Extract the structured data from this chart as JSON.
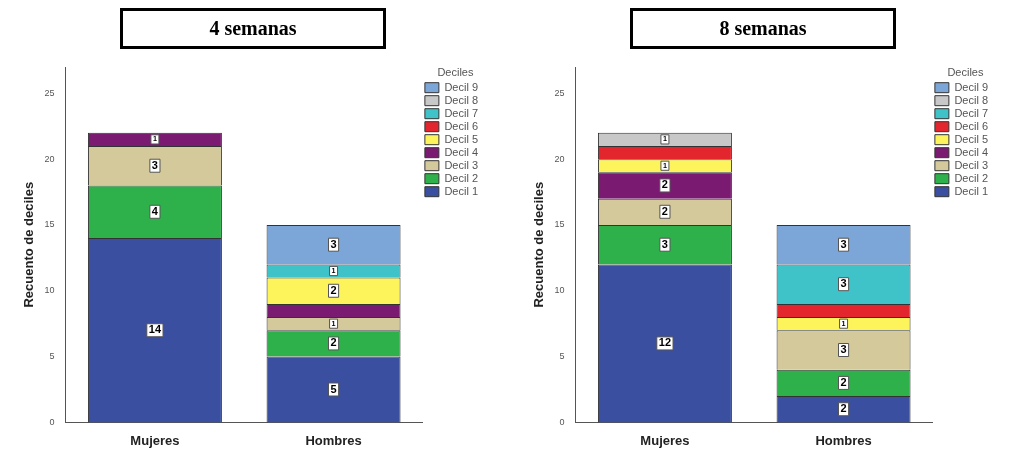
{
  "chart_data": [
    {
      "type": "bar",
      "title": "4 semanas",
      "ylabel": "Recuento de deciles",
      "legend_title": "Deciles",
      "legend": "right",
      "stacked": true,
      "grid": false,
      "categories": [
        "Mujeres",
        "Hombres"
      ],
      "ylim": [
        0,
        27
      ],
      "yticks": [
        0,
        5,
        10,
        15,
        20,
        25
      ],
      "series": [
        {
          "name": "Decil 1",
          "color": "#3a4fa0",
          "values": [
            14,
            5
          ],
          "value_labels": [
            "14",
            "5"
          ]
        },
        {
          "name": "Decil 2",
          "color": "#2eb14a",
          "values": [
            4,
            2
          ],
          "value_labels": [
            "4",
            "2"
          ]
        },
        {
          "name": "Decil 3",
          "color": "#d4c99a",
          "values": [
            3,
            1
          ],
          "value_labels": [
            "3",
            "1"
          ]
        },
        {
          "name": "Decil 4",
          "color": "#7a1a70",
          "values": [
            1,
            1
          ],
          "value_labels": [
            "1",
            null
          ]
        },
        {
          "name": "Decil 5",
          "color": "#fcf45a",
          "values": [
            0,
            2
          ],
          "value_labels": [
            null,
            "2"
          ]
        },
        {
          "name": "Decil 6",
          "color": "#e3262e",
          "values": [
            0,
            0
          ],
          "value_labels": [
            null,
            null
          ]
        },
        {
          "name": "Decil 7",
          "color": "#40c3c8",
          "values": [
            0,
            1
          ],
          "value_labels": [
            null,
            "1"
          ]
        },
        {
          "name": "Decil 8",
          "color": "#c8c8c8",
          "values": [
            0,
            0
          ],
          "value_labels": [
            null,
            null
          ]
        },
        {
          "name": "Decil 9",
          "color": "#7ca6d8",
          "values": [
            0,
            3
          ],
          "value_labels": [
            null,
            "3"
          ]
        }
      ]
    },
    {
      "type": "bar",
      "title": "8 semanas",
      "ylabel": "Recuento de deciles",
      "legend_title": "Deciles",
      "legend": "right",
      "stacked": true,
      "grid": false,
      "categories": [
        "Mujeres",
        "Hombres"
      ],
      "ylim": [
        0,
        27
      ],
      "yticks": [
        0,
        5,
        10,
        15,
        20,
        25
      ],
      "series": [
        {
          "name": "Decil 1",
          "color": "#3a4fa0",
          "values": [
            12,
            2
          ],
          "value_labels": [
            "12",
            "2"
          ]
        },
        {
          "name": "Decil 2",
          "color": "#2eb14a",
          "values": [
            3,
            2
          ],
          "value_labels": [
            "3",
            "2"
          ]
        },
        {
          "name": "Decil 3",
          "color": "#d4c99a",
          "values": [
            2,
            3
          ],
          "value_labels": [
            "2",
            "3"
          ]
        },
        {
          "name": "Decil 4",
          "color": "#7a1a70",
          "values": [
            2,
            0
          ],
          "value_labels": [
            "2",
            null
          ]
        },
        {
          "name": "Decil 5",
          "color": "#fcf45a",
          "values": [
            1,
            1
          ],
          "value_labels": [
            "1",
            "1"
          ]
        },
        {
          "name": "Decil 6",
          "color": "#e3262e",
          "values": [
            1,
            1
          ],
          "value_labels": [
            null,
            null
          ]
        },
        {
          "name": "Decil 7",
          "color": "#40c3c8",
          "values": [
            0,
            3
          ],
          "value_labels": [
            null,
            "3"
          ]
        },
        {
          "name": "Decil 8",
          "color": "#c8c8c8",
          "values": [
            1,
            0
          ],
          "value_labels": [
            "1",
            null
          ]
        },
        {
          "name": "Decil 9",
          "color": "#7ca6d8",
          "values": [
            0,
            3
          ],
          "value_labels": [
            null,
            "3"
          ]
        }
      ]
    }
  ]
}
